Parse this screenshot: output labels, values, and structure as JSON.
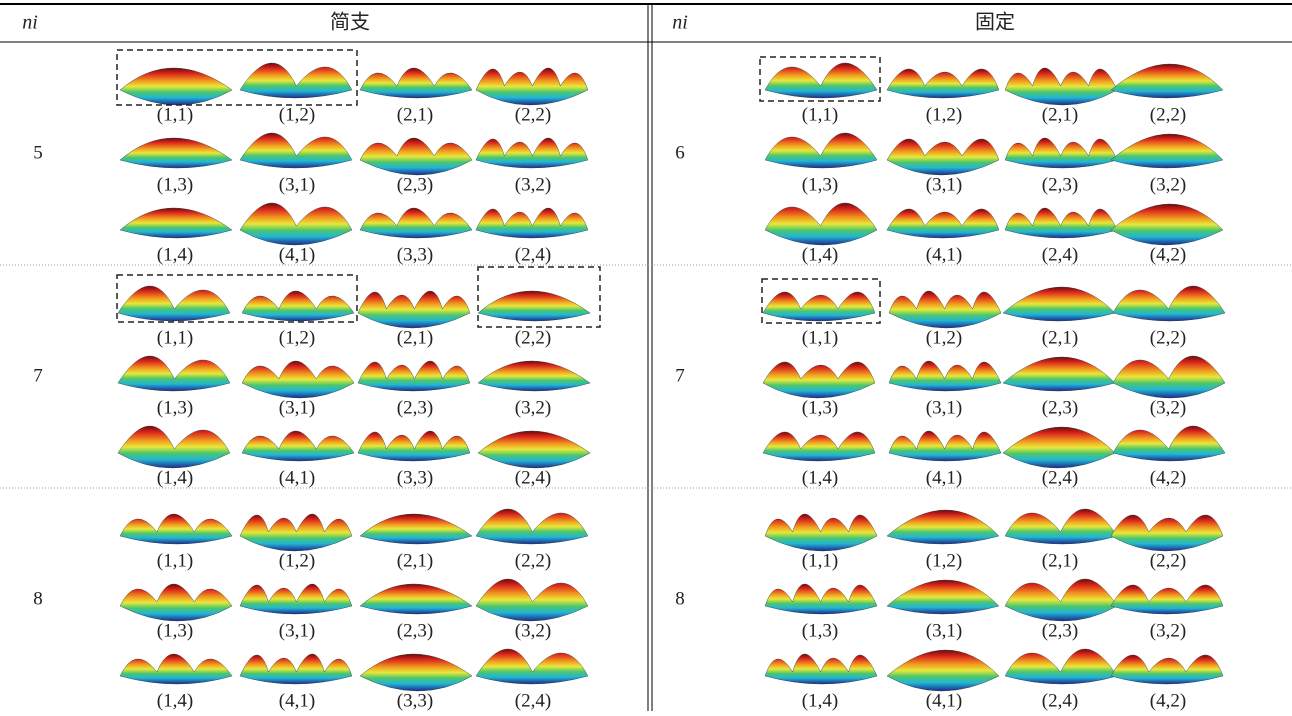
{
  "header": {
    "left_ni": "ni",
    "left_title": "简支",
    "right_ni": "ni",
    "right_title": "固定"
  },
  "rows": [
    {
      "left_ni": 5,
      "left_modes": [
        "(1,1)",
        "(1,2)",
        "(2,1)",
        "(2,2)",
        "(1,3)",
        "(3,1)",
        "(2,3)",
        "(3,2)",
        "(1,4)",
        "(4,1)",
        "(3,3)",
        "(2,4)"
      ],
      "right_ni": 6,
      "right_modes": [
        "(1,1)",
        "(1,2)",
        "(2,1)",
        "(2,2)",
        "(1,3)",
        "(3,1)",
        "(2,3)",
        "(3,2)",
        "(1,4)",
        "(4,1)",
        "(2,4)",
        "(4,2)"
      ]
    },
    {
      "left_ni": 7,
      "left_modes": [
        "(1,1)",
        "(1,2)",
        "(2,1)",
        "(2,2)",
        "(1,3)",
        "(3,1)",
        "(2,3)",
        "(3,2)",
        "(1,4)",
        "(4,1)",
        "(3,3)",
        "(2,4)"
      ],
      "right_ni": 7,
      "right_modes": [
        "(1,1)",
        "(1,2)",
        "(2,1)",
        "(2,2)",
        "(1,3)",
        "(3,1)",
        "(2,3)",
        "(3,2)",
        "(1,4)",
        "(4,1)",
        "(2,4)",
        "(4,2)"
      ]
    },
    {
      "left_ni": 8,
      "left_modes": [
        "(1,1)",
        "(1,2)",
        "(2,1)",
        "(2,2)",
        "(1,3)",
        "(3,1)",
        "(2,3)",
        "(3,2)",
        "(1,4)",
        "(4,1)",
        "(3,3)",
        "(2,4)"
      ],
      "right_ni": 8,
      "right_modes": [
        "(1,1)",
        "(1,2)",
        "(2,1)",
        "(2,2)",
        "(1,3)",
        "(3,1)",
        "(2,3)",
        "(3,2)",
        "(1,4)",
        "(4,1)",
        "(2,4)",
        "(4,2)"
      ]
    }
  ]
}
